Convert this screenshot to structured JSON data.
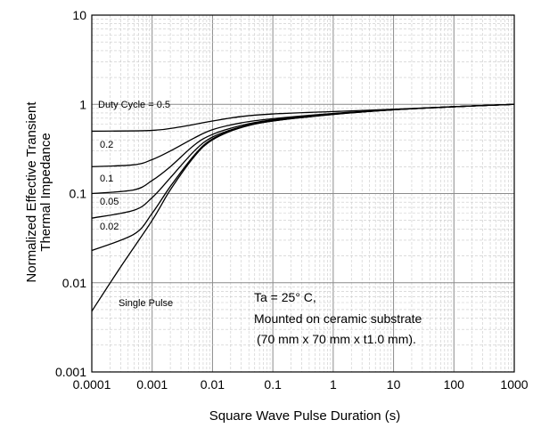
{
  "chart_data": {
    "type": "line",
    "title": "",
    "xlabel": "Square Wave Pulse Duration (s)",
    "ylabel_lines": [
      "Normalized Effective Transient",
      "Thermal Impedance"
    ],
    "x_scale": "log",
    "y_scale": "log",
    "xlim": [
      0.0001,
      1000
    ],
    "ylim": [
      0.001,
      10
    ],
    "x_ticks": [
      "0.0001",
      "0.001",
      "0.01",
      "0.1",
      "1",
      "10",
      "100",
      "1000"
    ],
    "y_ticks": [
      "0.001",
      "0.01",
      "0.1",
      "1",
      "10"
    ],
    "grid": true,
    "series": [
      {
        "name": "Duty Cycle = 0.5",
        "x": [
          0.0001,
          0.001,
          0.003,
          0.01,
          0.03,
          0.1,
          1,
          10,
          100,
          1000
        ],
        "values": [
          0.5,
          0.51,
          0.56,
          0.65,
          0.73,
          0.78,
          0.83,
          0.88,
          0.94,
          1.0
        ]
      },
      {
        "name": "0.2",
        "x": [
          0.0001,
          0.0005,
          0.001,
          0.002,
          0.005,
          0.01,
          0.03,
          0.1,
          1,
          10,
          100,
          1000
        ],
        "values": [
          0.2,
          0.21,
          0.24,
          0.3,
          0.42,
          0.52,
          0.62,
          0.69,
          0.79,
          0.87,
          0.94,
          1.0
        ]
      },
      {
        "name": "0.1",
        "x": [
          0.0001,
          0.0005,
          0.001,
          0.002,
          0.005,
          0.01,
          0.03,
          0.1,
          1,
          10,
          100,
          1000
        ],
        "values": [
          0.1,
          0.11,
          0.14,
          0.2,
          0.35,
          0.46,
          0.58,
          0.67,
          0.78,
          0.87,
          0.94,
          1.0
        ]
      },
      {
        "name": "0.05",
        "x": [
          0.0001,
          0.0005,
          0.001,
          0.002,
          0.005,
          0.01,
          0.03,
          0.1,
          1,
          10,
          100,
          1000
        ],
        "values": [
          0.053,
          0.065,
          0.09,
          0.15,
          0.3,
          0.43,
          0.56,
          0.66,
          0.78,
          0.87,
          0.94,
          1.0
        ]
      },
      {
        "name": "0.02",
        "x": [
          0.0001,
          0.0005,
          0.001,
          0.002,
          0.005,
          0.01,
          0.03,
          0.1,
          1,
          10,
          100,
          1000
        ],
        "values": [
          0.023,
          0.035,
          0.06,
          0.12,
          0.27,
          0.41,
          0.55,
          0.65,
          0.77,
          0.87,
          0.94,
          1.0
        ]
      },
      {
        "name": "Single Pulse",
        "x": [
          0.0001,
          0.0003,
          0.001,
          0.002,
          0.005,
          0.01,
          0.03,
          0.1,
          1,
          10,
          100,
          1000
        ],
        "values": [
          0.0048,
          0.015,
          0.05,
          0.11,
          0.26,
          0.4,
          0.55,
          0.65,
          0.77,
          0.87,
          0.94,
          1.0
        ]
      }
    ],
    "series_labels": [
      "Duty Cycle = 0.5",
      "0.2",
      "0.1",
      "0.05",
      "0.02",
      "Single Pulse"
    ],
    "annotations": [
      "Ta = 25° C,",
      "Mounted on ceramic substrate",
      "(70 mm x 70 mm x t1.0 mm)."
    ],
    "colors": {
      "line": "#000000",
      "major_grid": "#8c8c8c",
      "minor_grid": "#c8c8c8",
      "background": "#ffffff"
    }
  }
}
